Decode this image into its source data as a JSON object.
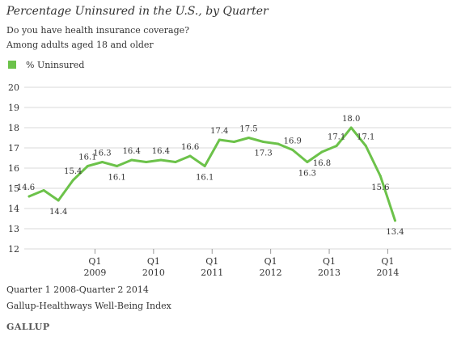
{
  "chart_data": {
    "type": "line",
    "title": "Percentage Uninsured in the U.S., by Quarter",
    "subtitle_lines": [
      "Do you have health insurance coverage?",
      "Among adults aged 18 and older"
    ],
    "series": [
      {
        "name": "% Uninsured",
        "color": "#6cc24a",
        "values": [
          14.6,
          14.9,
          14.4,
          15.4,
          16.1,
          16.3,
          16.1,
          16.4,
          16.3,
          16.4,
          16.3,
          16.6,
          16.1,
          17.4,
          17.3,
          17.5,
          17.3,
          17.2,
          16.9,
          16.3,
          16.8,
          17.1,
          18.0,
          17.1,
          15.6,
          13.4
        ],
        "labels": [
          "14.6",
          "",
          "14.4",
          "15.4",
          "16.1",
          "16.3",
          "16.1",
          "16.4",
          "",
          "16.4",
          "",
          "16.6",
          "16.1",
          "17.4",
          "",
          "17.5",
          "17.3",
          "",
          "16.9",
          "16.3",
          "16.8",
          "17.1",
          "18.0",
          "17.1",
          "15.6",
          "13.4"
        ],
        "label_pos": [
          "above",
          "",
          "below",
          "above",
          "above",
          "above",
          "below",
          "above",
          "",
          "above",
          "",
          "above",
          "below",
          "above",
          "",
          "above",
          "below",
          "",
          "above",
          "below",
          "below",
          "above",
          "above",
          "above",
          "below",
          "below"
        ]
      }
    ],
    "x_periods": [
      "Q1 2008",
      "Q2 2008",
      "Q3 2008",
      "Q4 2008",
      "Q1 2009",
      "Q2 2009",
      "Q3 2009",
      "Q4 2009",
      "Q1 2010",
      "Q2 2010",
      "Q3 2010",
      "Q4 2010",
      "Q1 2011",
      "Q2 2011",
      "Q3 2011",
      "Q4 2011",
      "Q1 2012",
      "Q2 2012",
      "Q3 2012",
      "Q4 2012",
      "Q1 2013",
      "Q2 2013",
      "Q3 2013",
      "Q4 2013",
      "Q1 2014",
      "Q2 2014"
    ],
    "x_ticks": [
      {
        "index": 4.5,
        "quarter": "Q1",
        "year": "2009"
      },
      {
        "index": 8.5,
        "quarter": "Q1",
        "year": "2010"
      },
      {
        "index": 12.5,
        "quarter": "Q1",
        "year": "2011"
      },
      {
        "index": 16.5,
        "quarter": "Q1",
        "year": "2012"
      },
      {
        "index": 20.5,
        "quarter": "Q1",
        "year": "2013"
      },
      {
        "index": 24.5,
        "quarter": "Q1",
        "year": "2014"
      }
    ],
    "y_ticks": [
      "12",
      "13",
      "14",
      "15",
      "16",
      "17",
      "18",
      "19",
      "20"
    ],
    "ylim": [
      12,
      20
    ],
    "grid": true,
    "legend": "top-left"
  },
  "footer": {
    "line1": "Quarter 1 2008-Quarter 2 2014",
    "line2": "Gallup-Healthways Well-Being Index"
  },
  "brand": "GALLUP"
}
